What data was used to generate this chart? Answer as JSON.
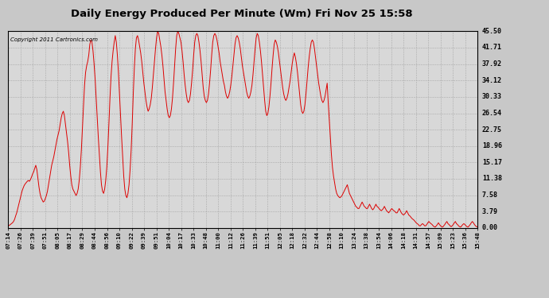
{
  "title": "Daily Energy Produced Per Minute (Wm) Fri Nov 25 15:58",
  "copyright": "Copyright 2011 Cartronics.com",
  "background_color": "#c8c8c8",
  "plot_bg_color": "#d8d8d8",
  "line_color": "#dd0000",
  "line_width": 0.7,
  "yticks": [
    0.0,
    3.79,
    7.58,
    11.38,
    15.17,
    18.96,
    22.75,
    26.54,
    30.33,
    34.12,
    37.92,
    41.71,
    45.5
  ],
  "ylim": [
    0,
    45.5
  ],
  "xtick_labels": [
    "07:14",
    "07:26",
    "07:39",
    "07:51",
    "08:05",
    "08:17",
    "08:29",
    "08:44",
    "08:56",
    "09:10",
    "09:22",
    "09:39",
    "09:51",
    "10:04",
    "10:17",
    "10:33",
    "10:48",
    "11:00",
    "11:12",
    "11:26",
    "11:39",
    "11:51",
    "12:05",
    "12:18",
    "12:32",
    "12:44",
    "12:58",
    "13:10",
    "13:24",
    "13:38",
    "13:54",
    "14:06",
    "14:18",
    "14:31",
    "14:57",
    "15:09",
    "15:23",
    "15:36",
    "15:48"
  ],
  "data_y": [
    0.5,
    0.6,
    0.8,
    1.0,
    1.2,
    1.5,
    2.0,
    2.8,
    3.5,
    4.5,
    5.5,
    6.5,
    7.5,
    8.5,
    9.2,
    9.8,
    10.2,
    10.5,
    10.8,
    11.0,
    10.8,
    11.2,
    11.8,
    12.5,
    13.0,
    13.8,
    14.5,
    13.5,
    11.5,
    9.5,
    8.0,
    7.0,
    6.5,
    6.0,
    6.2,
    6.8,
    7.5,
    8.5,
    10.0,
    11.5,
    13.0,
    14.5,
    15.5,
    16.5,
    17.8,
    19.0,
    20.5,
    21.5,
    22.5,
    24.0,
    25.5,
    26.5,
    27.0,
    26.0,
    24.0,
    22.0,
    20.0,
    17.5,
    14.5,
    12.0,
    10.0,
    9.0,
    8.5,
    8.0,
    7.5,
    8.0,
    9.0,
    11.0,
    14.0,
    18.0,
    23.0,
    28.0,
    33.0,
    36.0,
    37.5,
    38.5,
    40.0,
    42.5,
    43.5,
    43.0,
    41.0,
    38.0,
    34.5,
    30.0,
    25.5,
    21.0,
    17.0,
    13.0,
    10.0,
    8.5,
    8.0,
    9.0,
    11.0,
    14.0,
    18.5,
    24.0,
    30.0,
    35.0,
    38.5,
    41.0,
    43.0,
    44.5,
    43.0,
    40.0,
    36.0,
    31.0,
    26.0,
    21.0,
    16.5,
    12.0,
    9.0,
    7.5,
    7.0,
    8.0,
    10.0,
    13.5,
    18.0,
    24.0,
    31.0,
    37.0,
    41.5,
    44.0,
    44.5,
    43.5,
    42.0,
    40.5,
    38.5,
    36.0,
    33.5,
    31.5,
    29.5,
    28.0,
    27.0,
    27.5,
    28.5,
    30.0,
    32.5,
    35.5,
    38.5,
    41.5,
    44.0,
    45.5,
    45.0,
    43.5,
    42.0,
    40.0,
    37.5,
    34.5,
    31.5,
    29.5,
    27.5,
    26.0,
    25.5,
    26.0,
    27.5,
    30.0,
    33.5,
    37.5,
    41.5,
    44.5,
    45.5,
    45.0,
    44.0,
    43.0,
    41.0,
    38.5,
    35.5,
    33.0,
    31.0,
    29.5,
    29.0,
    29.5,
    31.0,
    33.5,
    36.5,
    40.0,
    43.0,
    44.5,
    45.0,
    44.5,
    43.0,
    41.0,
    38.5,
    35.5,
    32.5,
    30.5,
    29.5,
    29.0,
    29.5,
    31.0,
    33.5,
    36.5,
    40.0,
    43.0,
    44.5,
    45.0,
    44.5,
    43.5,
    42.0,
    40.5,
    38.5,
    37.0,
    35.5,
    34.0,
    33.0,
    31.5,
    30.5,
    30.0,
    30.5,
    31.5,
    33.0,
    35.0,
    37.5,
    40.0,
    42.5,
    44.0,
    44.5,
    44.0,
    43.0,
    41.5,
    39.5,
    37.5,
    36.0,
    34.5,
    33.0,
    31.5,
    30.5,
    30.0,
    30.5,
    31.5,
    33.0,
    35.5,
    38.5,
    41.5,
    44.0,
    45.0,
    44.5,
    43.0,
    41.0,
    38.5,
    35.5,
    32.5,
    29.5,
    27.0,
    26.0,
    26.5,
    28.0,
    30.5,
    33.5,
    37.0,
    40.0,
    42.5,
    43.5,
    43.0,
    42.0,
    40.5,
    38.5,
    36.5,
    34.5,
    32.5,
    31.0,
    30.0,
    29.5,
    30.0,
    31.0,
    32.5,
    34.0,
    36.0,
    38.0,
    39.5,
    40.5,
    39.5,
    38.0,
    36.0,
    33.5,
    31.0,
    28.5,
    27.0,
    26.5,
    27.0,
    28.5,
    31.0,
    34.0,
    37.0,
    39.5,
    41.5,
    43.0,
    43.5,
    43.0,
    41.5,
    39.5,
    37.5,
    35.5,
    33.5,
    32.0,
    30.5,
    29.5,
    29.0,
    29.5,
    30.5,
    32.0,
    33.5,
    29.0,
    25.0,
    21.0,
    17.0,
    14.0,
    12.0,
    10.5,
    9.0,
    8.0,
    7.5,
    7.2,
    7.0,
    7.2,
    7.5,
    8.0,
    8.5,
    9.0,
    9.5,
    10.0,
    9.0,
    8.0,
    7.5,
    7.0,
    6.5,
    6.0,
    5.5,
    5.0,
    4.8,
    4.5,
    4.5,
    5.0,
    5.5,
    6.0,
    5.5,
    5.0,
    4.8,
    4.5,
    4.5,
    5.0,
    5.5,
    5.0,
    4.5,
    4.2,
    4.5,
    5.0,
    5.5,
    5.0,
    4.8,
    4.5,
    4.2,
    4.0,
    4.2,
    4.5,
    5.0,
    4.5,
    4.0,
    3.8,
    3.5,
    3.8,
    4.2,
    4.5,
    4.2,
    4.0,
    3.8,
    3.5,
    3.5,
    4.0,
    4.5,
    4.0,
    3.5,
    3.2,
    3.0,
    3.2,
    3.5,
    4.0,
    3.5,
    3.0,
    2.8,
    2.5,
    2.2,
    2.0,
    1.8,
    1.5,
    1.2,
    1.0,
    0.8,
    0.5,
    0.5,
    0.8,
    1.0,
    0.8,
    0.5,
    0.5,
    0.8,
    1.2,
    1.5,
    1.2,
    1.0,
    0.8,
    0.5,
    0.3,
    0.2,
    0.5,
    0.8,
    1.2,
    0.8,
    0.5,
    0.3,
    0.2,
    0.5,
    0.8,
    1.2,
    1.5,
    1.0,
    0.8,
    0.5,
    0.3,
    0.5,
    0.8,
    1.2,
    1.5,
    1.0,
    0.8,
    0.5,
    0.3,
    0.2,
    0.5,
    0.8,
    1.0,
    0.8,
    0.5,
    0.3,
    0.2,
    0.5,
    0.8,
    1.2,
    1.5,
    1.2,
    0.8,
    0.5,
    0.3,
    0.2
  ]
}
